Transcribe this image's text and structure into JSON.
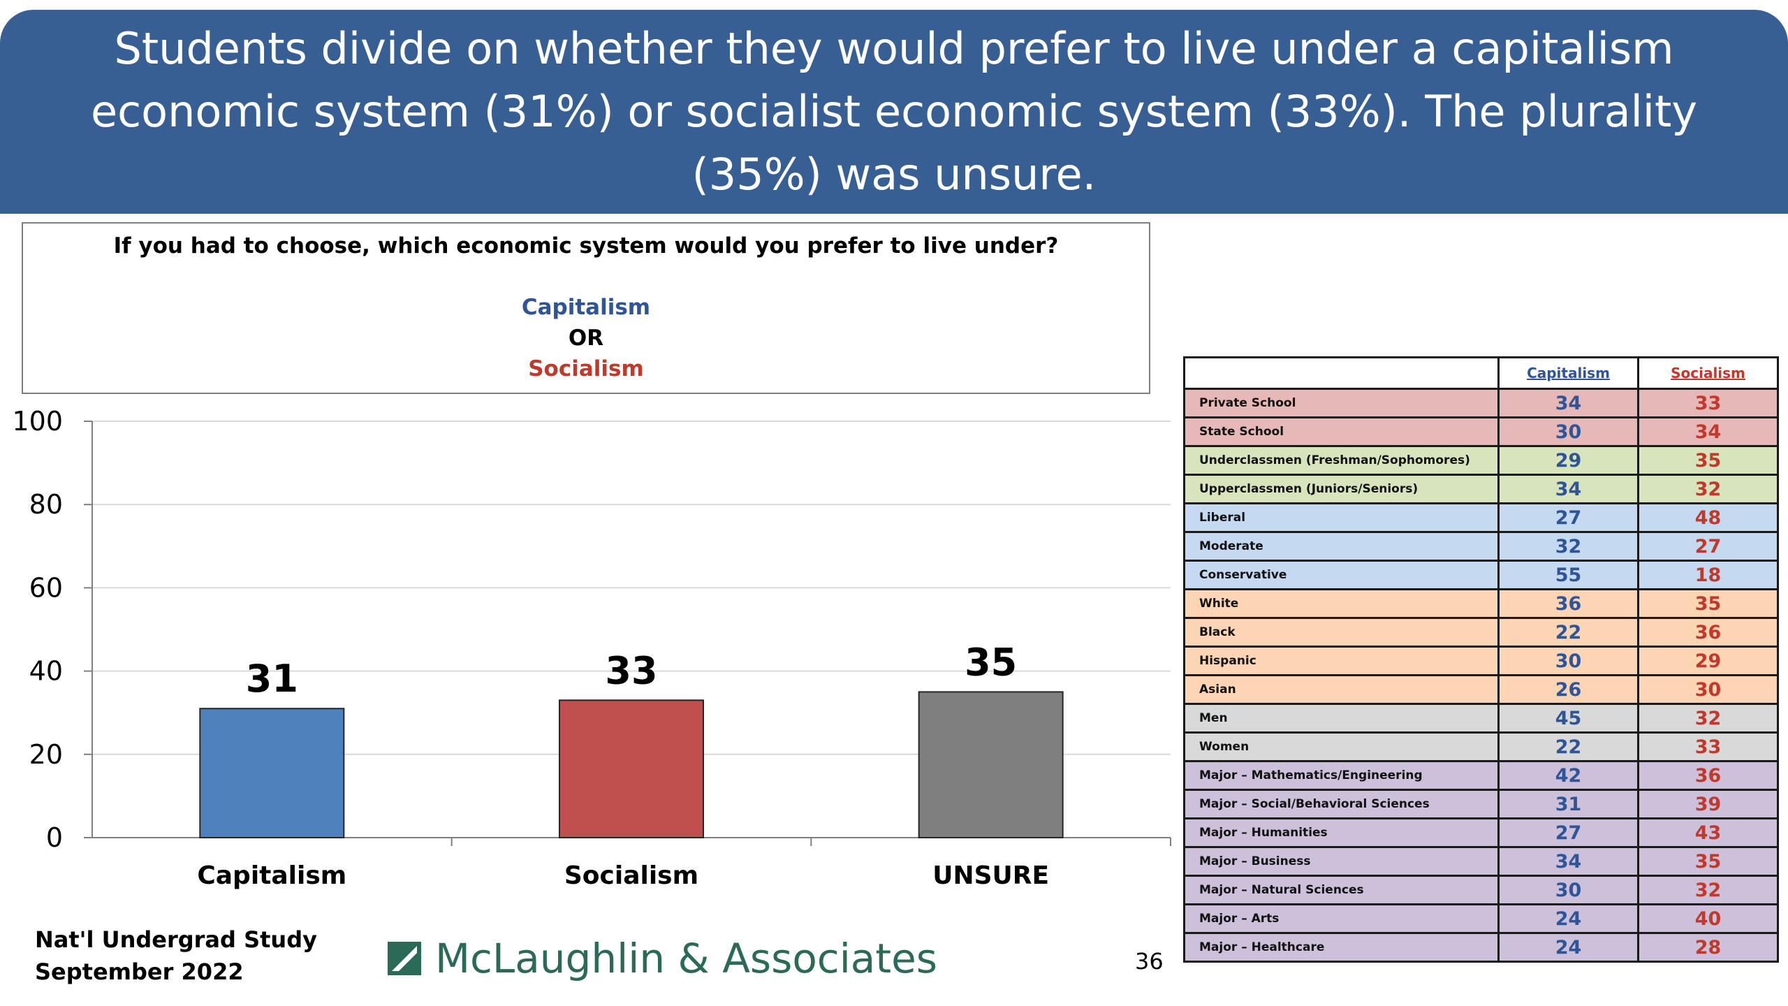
{
  "header": {
    "title": "Students divide on whether they would prefer to live under a capitalism economic system (31%) or socialist economic system (33%). The plurality (35%) was unsure."
  },
  "question": {
    "text": "If you had to choose, which economic system would you prefer to live under?",
    "option_a": "Capitalism",
    "option_or": "OR",
    "option_b": "Socialism"
  },
  "chart_data": {
    "type": "bar",
    "title": "",
    "xlabel": "",
    "ylabel": "",
    "categories": [
      "Capitalism",
      "Socialism",
      "UNSURE"
    ],
    "values": [
      31,
      33,
      35
    ],
    "colors": [
      "#4f81bd",
      "#c0504d",
      "#7f7f7f"
    ],
    "ylim": [
      0,
      100
    ],
    "yticks": [
      0,
      20,
      40,
      60,
      80,
      100
    ],
    "grid": true,
    "legend": "none"
  },
  "crosstab": {
    "headers": [
      "",
      "Capitalism",
      "Socialism"
    ],
    "rows": [
      {
        "label": "Private School",
        "capitalism": 34,
        "socialism": 33,
        "color": "#e6b8b7"
      },
      {
        "label": "State School",
        "capitalism": 30,
        "socialism": 34,
        "color": "#e6b8b7"
      },
      {
        "label": "Underclassmen (Freshman/Sophomores)",
        "capitalism": 29,
        "socialism": 35,
        "color": "#d7e4bc"
      },
      {
        "label": "Upperclassmen (Juniors/Seniors)",
        "capitalism": 34,
        "socialism": 32,
        "color": "#d7e4bc"
      },
      {
        "label": "Liberal",
        "capitalism": 27,
        "socialism": 48,
        "color": "#c5d9f1"
      },
      {
        "label": "Moderate",
        "capitalism": 32,
        "socialism": 27,
        "color": "#c5d9f1"
      },
      {
        "label": "Conservative",
        "capitalism": 55,
        "socialism": 18,
        "color": "#c5d9f1"
      },
      {
        "label": "White",
        "capitalism": 36,
        "socialism": 35,
        "color": "#fcd5b4"
      },
      {
        "label": "Black",
        "capitalism": 22,
        "socialism": 36,
        "color": "#fcd5b4"
      },
      {
        "label": "Hispanic",
        "capitalism": 30,
        "socialism": 29,
        "color": "#fcd5b4"
      },
      {
        "label": "Asian",
        "capitalism": 26,
        "socialism": 30,
        "color": "#fcd5b4"
      },
      {
        "label": "Men",
        "capitalism": 45,
        "socialism": 32,
        "color": "#d9d9d9"
      },
      {
        "label": "Women",
        "capitalism": 22,
        "socialism": 33,
        "color": "#d9d9d9"
      },
      {
        "label": "Major – Mathematics/Engineering",
        "capitalism": 42,
        "socialism": 36,
        "color": "#ccc0da"
      },
      {
        "label": "Major – Social/Behavioral Sciences",
        "capitalism": 31,
        "socialism": 39,
        "color": "#ccc0da"
      },
      {
        "label": "Major – Humanities",
        "capitalism": 27,
        "socialism": 43,
        "color": "#ccc0da"
      },
      {
        "label": "Major – Business",
        "capitalism": 34,
        "socialism": 35,
        "color": "#ccc0da"
      },
      {
        "label": "Major – Natural Sciences",
        "capitalism": 30,
        "socialism": 32,
        "color": "#ccc0da"
      },
      {
        "label": "Major – Arts",
        "capitalism": 24,
        "socialism": 40,
        "color": "#ccc0da"
      },
      {
        "label": "Major – Healthcare",
        "capitalism": 24,
        "socialism": 28,
        "color": "#ccc0da"
      }
    ]
  },
  "footer": {
    "study_line1": "Nat'l Undergrad Study",
    "study_line2": "September 2022",
    "logo_text": "McLaughlin & Associates",
    "logo_icon": "mclaughlin-logo-icon",
    "page_number": "36"
  }
}
